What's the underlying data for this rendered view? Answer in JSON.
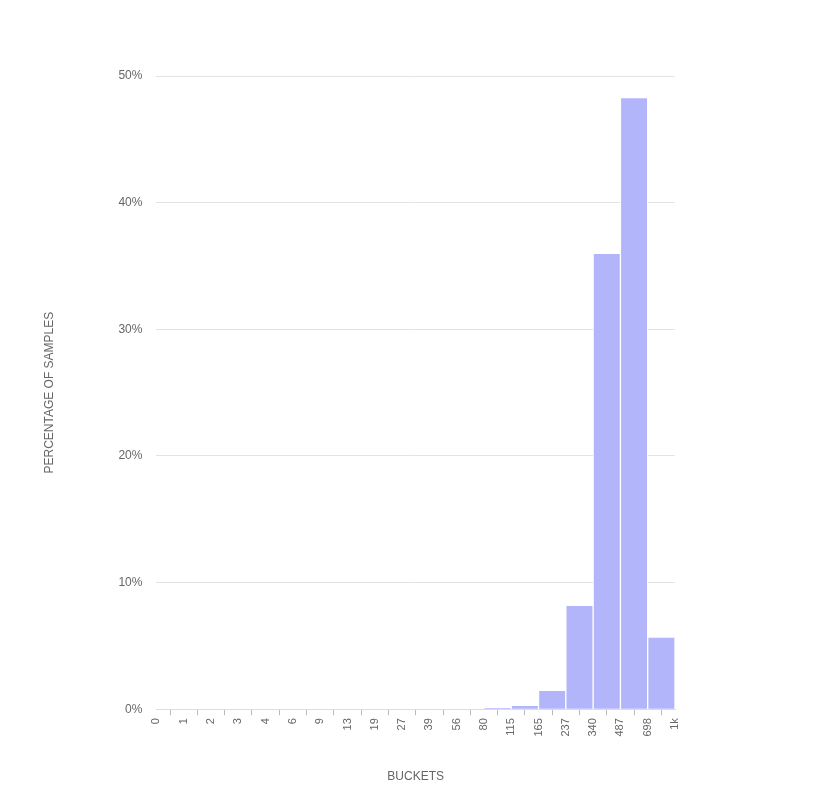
{
  "chart_data": {
    "type": "histogram",
    "x_label": "BUCKETS",
    "y_label": "PERCENTAGE OF SAMPLES",
    "bins": [
      0,
      1,
      2,
      3,
      4,
      6,
      9,
      13,
      19,
      27,
      39,
      56,
      80,
      115,
      165,
      237,
      340,
      487,
      698,
      {
        "value": 1000,
        "label": "1k"
      }
    ],
    "values": [
      0,
      0,
      0,
      0,
      0,
      0,
      0,
      0,
      0,
      0,
      0,
      0,
      0.1,
      0.3,
      1.5,
      8.2,
      36,
      48.3,
      5.7
    ],
    "color": "#b3b5fb",
    "ylim": [
      0,
      50
    ],
    "yticks": [
      {
        "value": 0,
        "label": "0%"
      },
      {
        "value": 10,
        "label": "10%"
      },
      {
        "value": 20,
        "label": "20%"
      },
      {
        "value": 30,
        "label": "30%"
      },
      {
        "value": 40,
        "label": "40%"
      },
      {
        "value": 50,
        "label": "50%"
      }
    ],
    "grid": true
  }
}
